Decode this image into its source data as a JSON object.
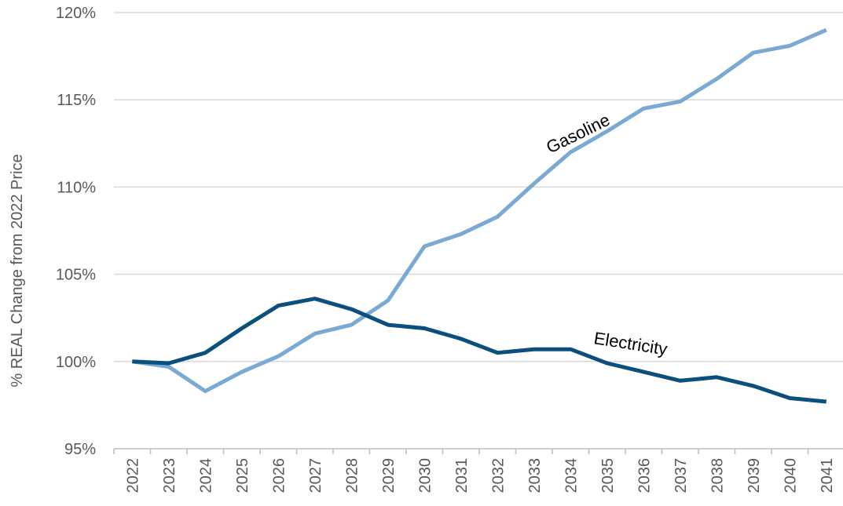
{
  "chart_data": {
    "type": "line",
    "ylabel": "% REAL Change from 2022 Price",
    "xlabel": "",
    "ylim": [
      95,
      120
    ],
    "yticks": [
      95,
      100,
      105,
      110,
      115,
      120
    ],
    "ytick_suffix": "%",
    "grid": "horizontal",
    "legend": "none",
    "categories": [
      "2022",
      "2023",
      "2024",
      "2025",
      "2026",
      "2027",
      "2028",
      "2029",
      "2030",
      "2031",
      "2032",
      "2033",
      "2034",
      "2035",
      "2036",
      "2037",
      "2038",
      "2039",
      "2040",
      "2041"
    ],
    "series": [
      {
        "name": "Gasoline",
        "color": "#7aaad3",
        "values": [
          100.0,
          99.7,
          98.3,
          99.4,
          100.3,
          101.6,
          102.1,
          103.5,
          106.6,
          107.3,
          108.3,
          110.2,
          112.0,
          113.2,
          114.5,
          114.9,
          116.2,
          117.7,
          118.1,
          119.0
        ]
      },
      {
        "name": "Electricity",
        "color": "#0b4f7e",
        "values": [
          100.0,
          99.9,
          100.5,
          101.9,
          103.2,
          103.6,
          103.0,
          102.1,
          101.9,
          101.3,
          100.5,
          100.7,
          100.7,
          99.9,
          99.4,
          98.9,
          99.1,
          98.6,
          97.9,
          97.7
        ]
      }
    ],
    "annotations": {
      "gasoline_label": "Gasoline",
      "electricity_label": "Electricity"
    }
  }
}
